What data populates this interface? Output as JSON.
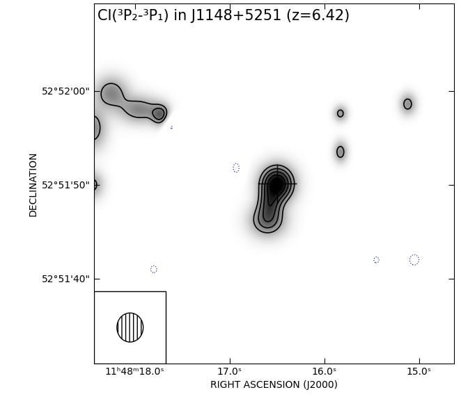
{
  "chart_data": {
    "type": "contour",
    "title": "CI(³P₂-³P₁) in J1148+5251 (z=6.42)",
    "x_label": "RIGHT ASCENSION (J2000)",
    "y_label": "DECLINATION",
    "xlim": [
      18.43,
      14.63
    ],
    "ylim": [
      30.96,
      69.3
    ],
    "xticks": [
      {
        "value": 18.0,
        "label": "11ʰ48ᵐ18.0ˢ"
      },
      {
        "value": 17.0,
        "label": "17.0ˢ"
      },
      {
        "value": 16.0,
        "label": "16.0ˢ"
      },
      {
        "value": 15.0,
        "label": "15.0ˢ"
      }
    ],
    "yticks": [
      {
        "value": 40,
        "label": "52°51'40\""
      },
      {
        "value": 50,
        "label": "52°51'50\""
      },
      {
        "value": 60,
        "label": "52°52'00\""
      }
    ],
    "sources": [
      {
        "ra": 16.5,
        "dec": 50.1,
        "peak": 6.5,
        "sigma_ra": 0.12,
        "sigma_dec": 1.3
      },
      {
        "ra": 16.6,
        "dec": 46.2,
        "peak": 3.6,
        "sigma_ra": 0.13,
        "sigma_dec": 1.2
      },
      {
        "ra": 16.58,
        "dec": 48.0,
        "peak": 2.5,
        "sigma_ra": 0.08,
        "sigma_dec": 1.0
      },
      {
        "ra": 17.72,
        "dec": 57.4,
        "peak": 3.2,
        "sigma_ra": 0.07,
        "sigma_dec": 0.8
      },
      {
        "ra": 17.95,
        "dec": 58.0,
        "peak": 2.8,
        "sigma_ra": 0.15,
        "sigma_dec": 1.0
      },
      {
        "ra": 18.25,
        "dec": 59.8,
        "peak": 2.8,
        "sigma_ra": 0.12,
        "sigma_dec": 1.2
      },
      {
        "ra": 18.45,
        "dec": 56.0,
        "peak": 2.8,
        "sigma_ra": 0.1,
        "sigma_dec": 1.5
      },
      {
        "ra": 15.83,
        "dec": 57.6,
        "peak": 2.4,
        "sigma_ra": 0.05,
        "sigma_dec": 0.6
      },
      {
        "ra": 15.83,
        "dec": 53.5,
        "peak": 2.6,
        "sigma_ra": 0.05,
        "sigma_dec": 0.8
      },
      {
        "ra": 15.12,
        "dec": 58.6,
        "peak": 2.5,
        "sigma_ra": 0.06,
        "sigma_dec": 0.8
      },
      {
        "ra": 18.45,
        "dec": 50.0,
        "peak": 2.4,
        "sigma_ra": 0.08,
        "sigma_dec": 1.0
      },
      {
        "ra": 16.93,
        "dec": 51.8,
        "peak": -2.4,
        "sigma_ra": 0.05,
        "sigma_dec": 0.8
      },
      {
        "ra": 17.62,
        "dec": 56.3,
        "peak": -2.4,
        "sigma_ra": 0.06,
        "sigma_dec": 0.9
      },
      {
        "ra": 15.05,
        "dec": 42.0,
        "peak": -2.4,
        "sigma_ra": 0.08,
        "sigma_dec": 0.9
      },
      {
        "ra": 15.45,
        "dec": 42.0,
        "peak": -2.3,
        "sigma_ra": 0.05,
        "sigma_dec": 0.6
      },
      {
        "ra": 17.8,
        "dec": 41.0,
        "peak": -2.3,
        "sigma_ra": 0.06,
        "sigma_dec": 0.7
      }
    ],
    "contour_levels": [
      -2,
      2,
      3,
      4,
      5,
      6
    ],
    "color_range": [
      0,
      6
    ],
    "color": "#000000",
    "negative_color": "#3030c0",
    "quasar_position": {
      "ra": 16.5,
      "dec": 50.1,
      "marker": "+"
    },
    "beam": {
      "major": 3.1,
      "minor": 2.8
    }
  }
}
